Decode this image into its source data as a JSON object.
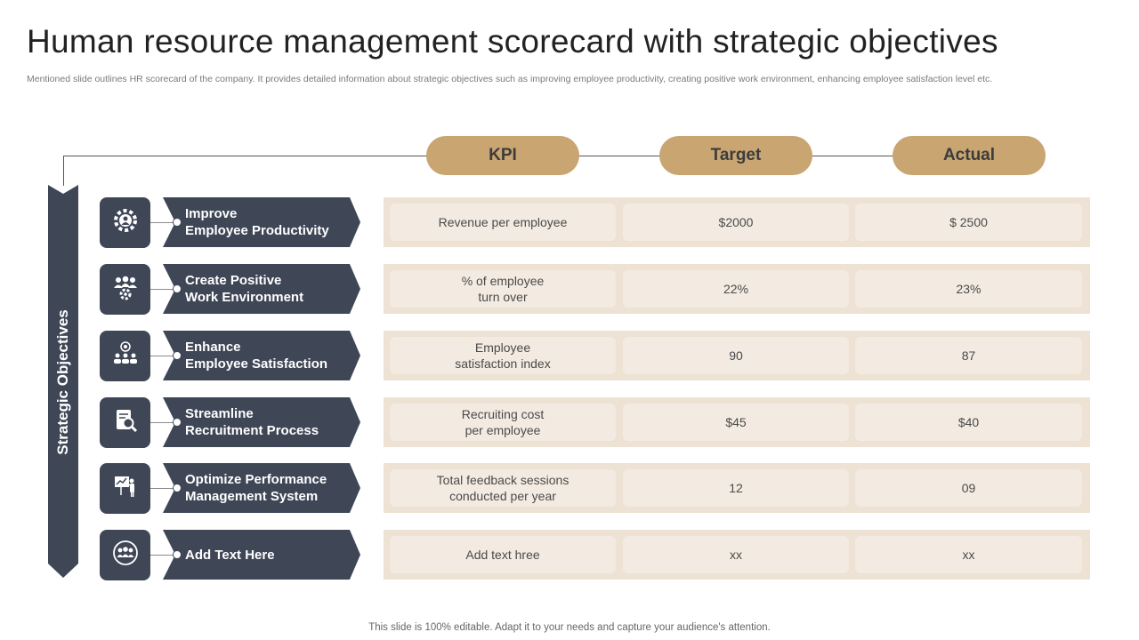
{
  "title": "Human resource management scorecard with strategic objectives",
  "subtitle": "Mentioned slide outlines HR scorecard of the company. It provides detailed information about strategic objectives such as improving employee productivity, creating positive work environment, enhancing employee satisfaction level etc.",
  "headers": {
    "kpi": "KPI",
    "target": "Target",
    "actual": "Actual"
  },
  "side_label": "Strategic Objectives",
  "colors": {
    "dark": "#3f4656",
    "gold": "#c9a571",
    "row_bg": "#ede2d3",
    "cell_bg": "#f3ebe1"
  },
  "rows": [
    {
      "objective": "Improve\nEmployee Productivity",
      "icon": "gear-people-icon",
      "kpi": "Revenue per employee",
      "target": "$2000",
      "actual": "$ 2500"
    },
    {
      "objective": "Create Positive\nWork Environment",
      "icon": "team-gear-icon",
      "kpi": "% of employee\nturn over",
      "target": "22%",
      "actual": "23%"
    },
    {
      "objective": "Enhance\nEmployee Satisfaction",
      "icon": "team-target-icon",
      "kpi": "Employee\nsatisfaction index",
      "target": "90",
      "actual": "87"
    },
    {
      "objective": "Streamline\nRecruitment Process",
      "icon": "resume-search-icon",
      "kpi": "Recruiting cost\nper employee",
      "target": "$45",
      "actual": "$40"
    },
    {
      "objective": "Optimize Performance\nManagement System",
      "icon": "presentation-icon",
      "kpi": "Total feedback sessions\nconducted per year",
      "target": "12",
      "actual": "09"
    },
    {
      "objective": "Add Text Here",
      "icon": "team-circle-icon",
      "kpi": "Add text hree",
      "target": "xx",
      "actual": "xx"
    }
  ],
  "footer": "This slide is 100% editable. Adapt it to your needs and capture your audience's attention."
}
